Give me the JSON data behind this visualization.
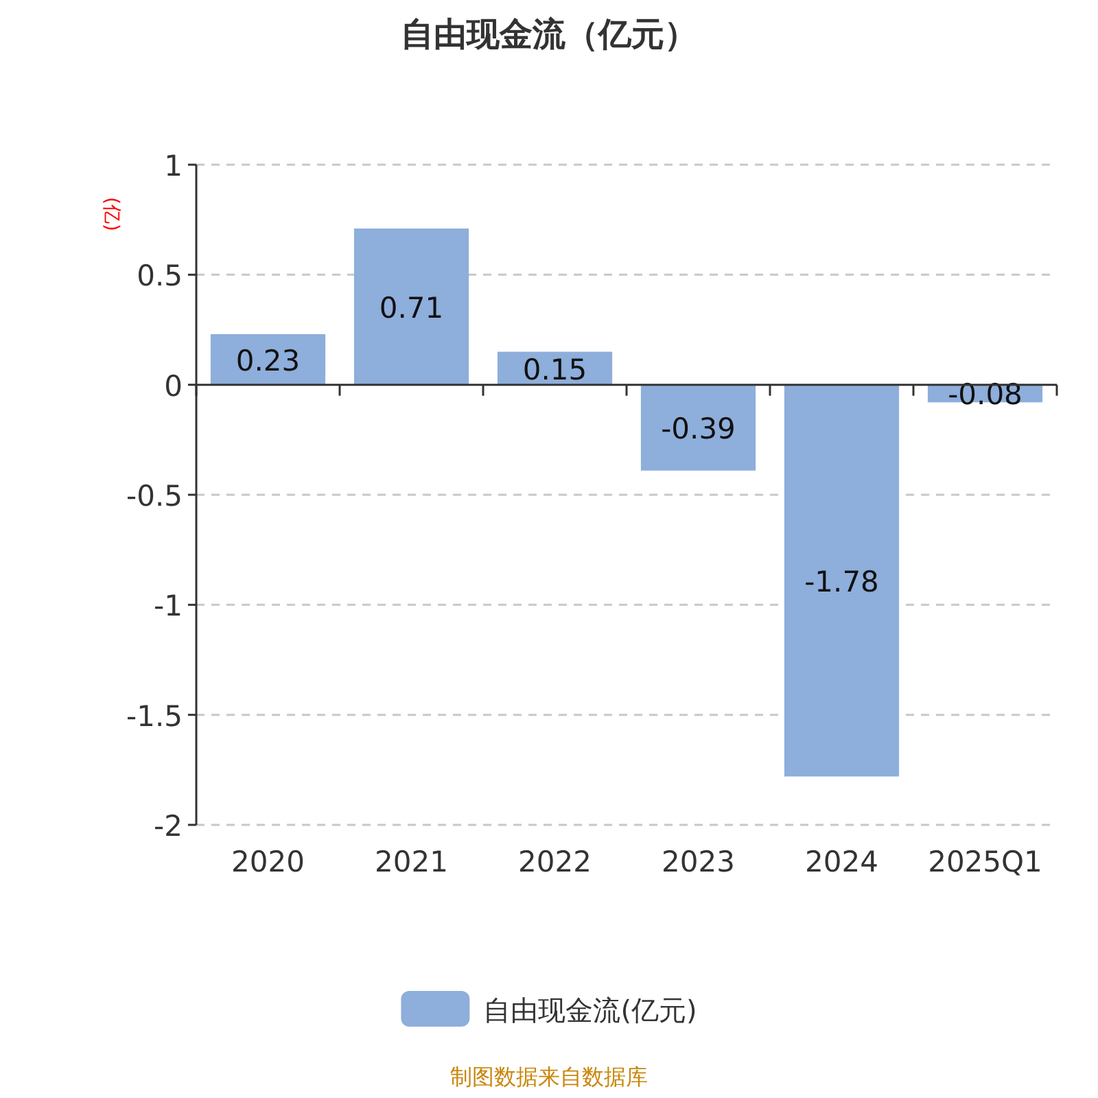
{
  "chart_data": {
    "type": "bar",
    "title": "自由现金流（亿元）",
    "ylabel": "(亿)",
    "categories": [
      "2020",
      "2021",
      "2022",
      "2023",
      "2024",
      "2025Q1"
    ],
    "series": [
      {
        "name": "自由现金流(亿元)",
        "color": "#8eaedb",
        "values": [
          0.23,
          0.71,
          0.15,
          -0.39,
          -1.78,
          -0.08
        ]
      }
    ],
    "ylim": [
      -2,
      1
    ],
    "yticks": [
      -2,
      -1.5,
      -1,
      -0.5,
      0,
      0.5,
      1
    ],
    "grid": "y",
    "legend": "bottom",
    "data_labels": true,
    "annotations": [
      "制图数据来自数据库"
    ]
  }
}
